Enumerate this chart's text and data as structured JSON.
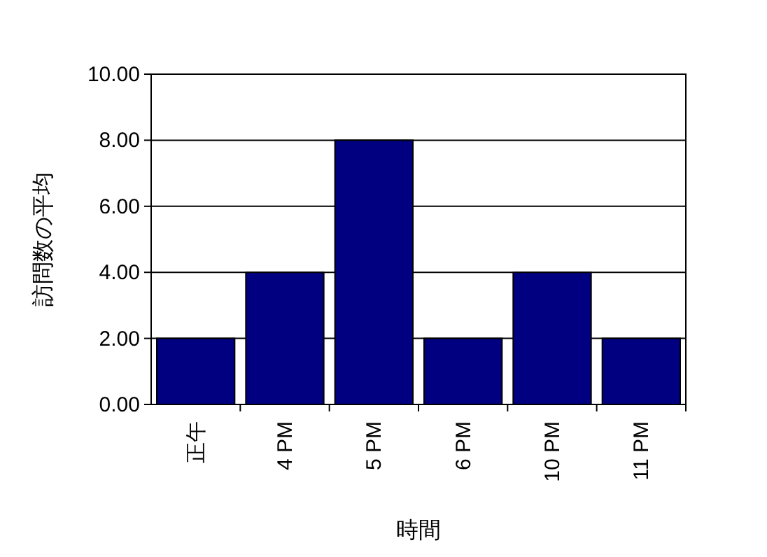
{
  "chart_data": {
    "type": "bar",
    "xlabel": "時間",
    "ylabel": "訪問数の平均",
    "categories": [
      "正午",
      "4 PM",
      "5 PM",
      "6 PM",
      "10 PM",
      "11 PM"
    ],
    "values": [
      2,
      4,
      8,
      2,
      4,
      2
    ],
    "color": "#000080",
    "ylim": [
      0,
      10
    ],
    "yticks": [
      {
        "value": 0,
        "label": "0.00"
      },
      {
        "value": 2,
        "label": "2.00"
      },
      {
        "value": 4,
        "label": "4.00"
      },
      {
        "value": 6,
        "label": "6.00"
      },
      {
        "value": 8,
        "label": "8.00"
      },
      {
        "value": 10,
        "label": "10.00"
      }
    ],
    "grid": "y"
  }
}
